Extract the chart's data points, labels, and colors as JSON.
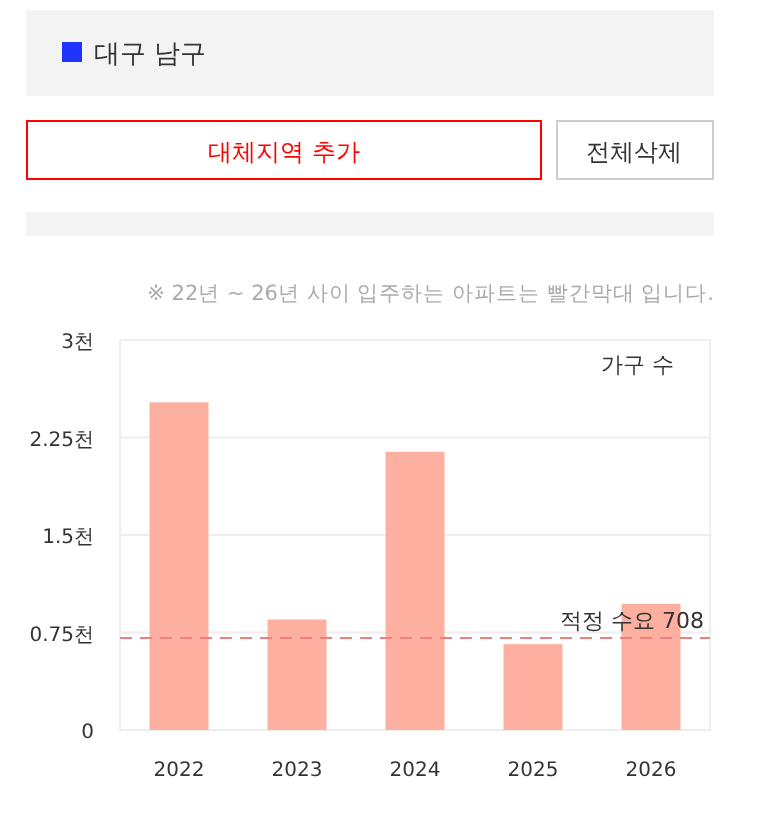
{
  "chart_data": {
    "type": "bar",
    "title": "대구 남구",
    "ylabel": "가구 수",
    "annotations": [
      "대체지역 추가",
      "전체삭제",
      "※ 22년 ~ 26년 사이 입주하는 아파트는 빨간막대 입니다."
    ],
    "categories": [
      "2022",
      "2023",
      "2024",
      "2025",
      "2026"
    ],
    "values": [
      2.52,
      0.85,
      2.14,
      0.66,
      0.97
    ],
    "color": "#fdb0a0",
    "ylim": [
      0,
      3
    ],
    "yticks": [
      0,
      {
        "value": 0.75,
        "label": "0.75천"
      },
      {
        "value": 1.5,
        "label": "1.5천"
      },
      {
        "value": 2.25,
        "label": "2.25천"
      },
      {
        "value": 3,
        "label": "3천"
      }
    ],
    "grid": "y",
    "ref_lines": [
      {
        "axis": "y",
        "value": 0.708,
        "label": "적정 수요 708",
        "color": "#f08080",
        "line_style": "dashed"
      }
    ]
  }
}
